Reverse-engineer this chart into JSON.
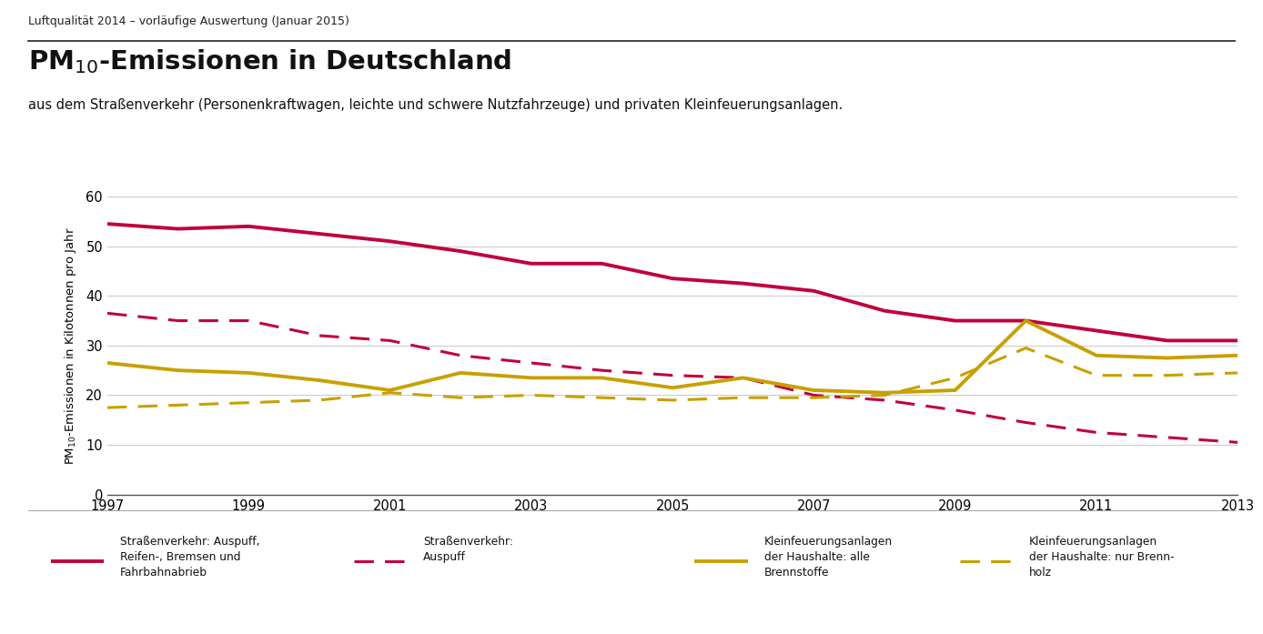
{
  "suptitle": "Luftqualität 2014 – vorläufige Auswertung (Januar 2015)",
  "title_main": "PM$_{10}$-Emissionen in Deutschland",
  "title_sub": "aus dem Straßenverkehr (Personenkraftwagen, leichte und schwere Nutzfahrzeuge) und privaten Kleinfeuerungsanlagen.",
  "ylabel": "PM$_{10}$-Emissionen in Kilotonnen pro Jahr",
  "years": [
    1997,
    1998,
    1999,
    2000,
    2001,
    2002,
    2003,
    2004,
    2005,
    2006,
    2007,
    2008,
    2009,
    2010,
    2011,
    2012,
    2013
  ],
  "strassenverkehr_gesamt": [
    54.5,
    53.5,
    54.0,
    52.5,
    51.0,
    49.0,
    46.5,
    46.5,
    43.5,
    42.5,
    41.0,
    37.0,
    35.0,
    35.0,
    33.0,
    31.0,
    31.0
  ],
  "strassenverkehr_auspuff": [
    36.5,
    35.0,
    35.0,
    32.0,
    31.0,
    28.0,
    26.5,
    25.0,
    24.0,
    23.5,
    20.0,
    19.0,
    17.0,
    14.5,
    12.5,
    11.5,
    10.5
  ],
  "kleinfeuerung_alle": [
    26.5,
    25.0,
    24.5,
    23.0,
    21.0,
    24.5,
    23.5,
    23.5,
    21.5,
    23.5,
    21.0,
    20.5,
    21.0,
    35.0,
    28.0,
    27.5,
    28.0
  ],
  "kleinfeuerung_holz": [
    17.5,
    18.0,
    18.5,
    19.0,
    20.5,
    19.5,
    20.0,
    19.5,
    19.0,
    19.5,
    19.5,
    20.0,
    23.5,
    29.5,
    24.0,
    24.0,
    24.5
  ],
  "color_pink": "#c0003c",
  "color_gold": "#c8a000",
  "ylim": [
    0,
    60
  ],
  "yticks": [
    0,
    10,
    20,
    30,
    40,
    50,
    60
  ],
  "xticks": [
    1997,
    1999,
    2001,
    2003,
    2005,
    2007,
    2009,
    2011,
    2013
  ],
  "legend_labels": [
    "Straßenverkehr: Auspuff,\nReifen-, Bremsen und\nFahrbahnabrieb",
    "Straßenverkehr:\nAuspuff",
    "Kleinfeuerungsanlagen\nder Haushalte: alle\nBrennstoffe",
    "Kleinfeuerungsanlagen\nder Haushalte: nur Brenn-\nholz"
  ]
}
